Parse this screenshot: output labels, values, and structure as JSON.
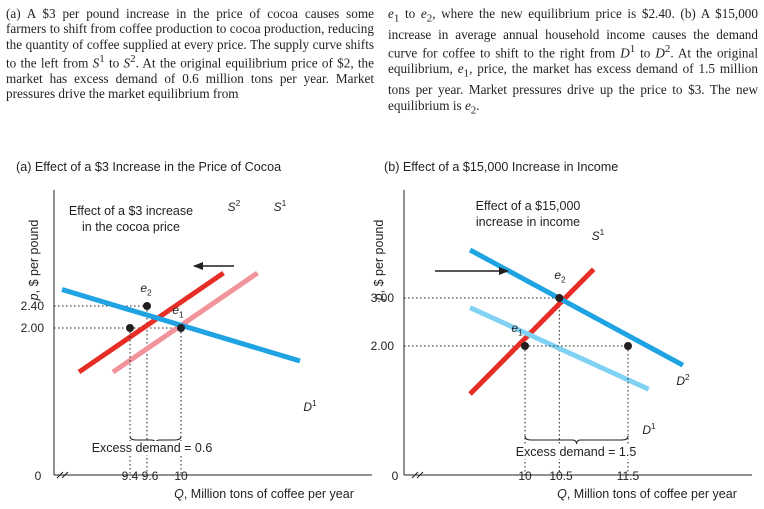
{
  "caption": {
    "left_html": "(a) A $3 per pound increase in the price of cocoa causes some farmers to shift from coffee production to cocoa production, reducing the quantity of coffee supplied at every price. The supply curve shifts to the left from <i>S</i><sup>1</sup> to <i>S</i><sup>2</sup>. At the original equilibrium price of $2, the market has excess demand of 0.6 million tons per year. Market pressures drive the market equilibrium from",
    "right_html": "<i>e</i><sub>1</sub> to <i>e</i><sub>2</sub>, where the new equilibrium price is $2.40. (b) A $15,000 increase in average annual household income causes the demand curve for coffee to shift to the right from <i>D</i><sup>1</sup> to <i>D</i><sup>2</sup>. At the original equilibrium, <i>e</i><sub>1</sub>, price, the market has excess demand of 1.5 million tons per year. Market pressures drive up the price to $3. The new equilibrium is <i>e</i><sub>2</sub>."
  },
  "chart_data": [
    {
      "type": "line",
      "title": "(a) Effect of a $3 Increase in the Price of Cocoa",
      "xlabel": "Q, Million tons of coffee per year",
      "ylabel": "p, $ per pound",
      "x_ticks": [
        "9.4",
        "9.6",
        "10"
      ],
      "y_ticks": [
        "2.40",
        "2.00"
      ],
      "origin_label": "0",
      "series": [
        {
          "name": "S1",
          "color": "#f1939b",
          "points": [
            [
              9.2,
              1.2
            ],
            [
              10.9,
              3.0
            ]
          ]
        },
        {
          "name": "S2",
          "color": "#e62e26",
          "points": [
            [
              8.8,
              1.2
            ],
            [
              10.5,
              3.0
            ]
          ]
        },
        {
          "name": "D1",
          "color": "#1fa3e3",
          "points": [
            [
              8.6,
              2.7
            ],
            [
              11.4,
              1.4
            ]
          ]
        }
      ],
      "points": [
        {
          "label": "e2",
          "x": 9.6,
          "y": 2.4
        },
        {
          "label": "e1",
          "x": 10,
          "y": 2.0
        }
      ],
      "annotations": {
        "shift_note": [
          "Effect of a $3 increase",
          "in the cocoa price"
        ],
        "s1_label": "S1",
        "s2_label": "S2",
        "d1_label": "D1",
        "excess_demand": "Excess demand = 0.6"
      }
    },
    {
      "type": "line",
      "title": "(b) Effect of a $15,000 Increase in Income",
      "xlabel": "Q, Million tons of coffee per year",
      "ylabel": "p, $ per pound",
      "x_ticks": [
        "10",
        "10.5",
        "11.5"
      ],
      "y_ticks": [
        "3.00",
        "2.00"
      ],
      "origin_label": "0",
      "series": [
        {
          "name": "S1",
          "color": "#e62e26",
          "points": [
            [
              9.2,
              1.0
            ],
            [
              11.0,
              3.6
            ]
          ]
        },
        {
          "name": "D1",
          "color": "#80d2f4",
          "points": [
            [
              9.2,
              2.8
            ],
            [
              11.8,
              1.1
            ]
          ]
        },
        {
          "name": "D2",
          "color": "#1fa3e3",
          "points": [
            [
              9.2,
              4.0
            ],
            [
              12.3,
              1.6
            ]
          ]
        }
      ],
      "points": [
        {
          "label": "e2",
          "x": 10.5,
          "y": 3.0
        },
        {
          "label": "e1",
          "x": 10,
          "y": 2.0
        }
      ],
      "annotations": {
        "shift_note": [
          "Effect of a $15,000",
          "increase in income"
        ],
        "s1_label": "S1",
        "d1_label": "D1",
        "d2_label": "D2",
        "excess_demand": "Excess demand = 1.5"
      }
    }
  ]
}
